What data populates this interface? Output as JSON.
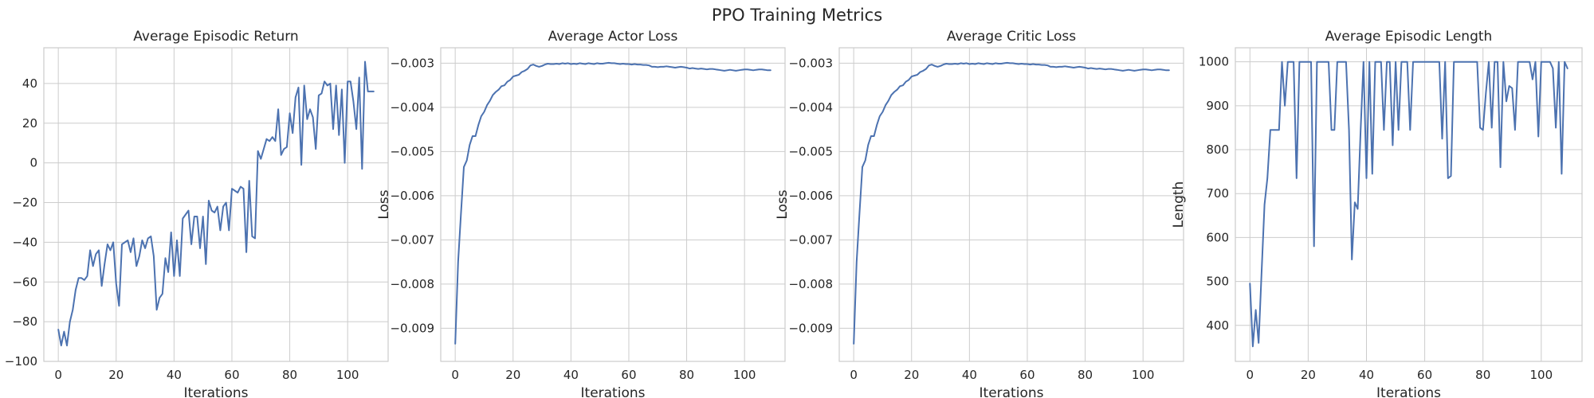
{
  "figure": {
    "title": "PPO Training Metrics",
    "line_color": "#4c72b0"
  },
  "chart_data": [
    {
      "type": "line",
      "title": "Average Episodic Return",
      "xlabel": "Iterations",
      "ylabel": "",
      "xlim": [
        -5,
        114
      ],
      "ylim": [
        -100,
        58
      ],
      "xticks": [
        0,
        20,
        40,
        60,
        80,
        100
      ],
      "yticks": [
        -100,
        -80,
        -60,
        -40,
        -20,
        0,
        20,
        40
      ],
      "series": [
        {
          "x": [
            0,
            1,
            2,
            3,
            4,
            5,
            6,
            7,
            8,
            9,
            10,
            11,
            12,
            13,
            14,
            15,
            16,
            17,
            18,
            19,
            20,
            21,
            22,
            23,
            24,
            25,
            26,
            27,
            28,
            29,
            30,
            31,
            32,
            33,
            34,
            35,
            36,
            37,
            38,
            39,
            40,
            41,
            42,
            43,
            44,
            45,
            46,
            47,
            48,
            49,
            50,
            51,
            52,
            53,
            54,
            55,
            56,
            57,
            58,
            59,
            60,
            61,
            62,
            63,
            64,
            65,
            66,
            67,
            68,
            69,
            70,
            71,
            72,
            73,
            74,
            75,
            76,
            77,
            78,
            79,
            80,
            81,
            82,
            83,
            84,
            85,
            86,
            87,
            88,
            89,
            90,
            91,
            92,
            93,
            94,
            95,
            96,
            97,
            98,
            99,
            100,
            101,
            102,
            103,
            104,
            105,
            106,
            107,
            108,
            109
          ],
          "y": [
            -84,
            -92,
            -85,
            -92,
            -80,
            -74,
            -64,
            -58,
            -58,
            -59,
            -57,
            -44,
            -52,
            -46,
            -44,
            -62,
            -51,
            -41,
            -44,
            -40,
            -61,
            -72,
            -41,
            -40,
            -39,
            -45,
            -38,
            -52,
            -47,
            -39,
            -43,
            -38,
            -37,
            -47,
            -74,
            -68,
            -66,
            -48,
            -55,
            -35,
            -57,
            -39,
            -57,
            -28,
            -26,
            -24,
            -41,
            -27,
            -27,
            -43,
            -27,
            -51,
            -19,
            -24,
            -25,
            -22,
            -34,
            -22,
            -20,
            -34,
            -13,
            -14,
            -15,
            -12,
            -13,
            -45,
            -9,
            -37,
            -38,
            6,
            2,
            7,
            12,
            11,
            13,
            11,
            27,
            4,
            7,
            8,
            25,
            15,
            33,
            38,
            -1,
            39,
            22,
            27,
            23,
            7,
            34,
            35,
            41,
            39,
            40,
            17,
            39,
            14,
            37,
            0,
            41,
            41,
            31,
            17,
            43,
            -3,
            51,
            36,
            36,
            36
          ]
        }
      ]
    },
    {
      "type": "line",
      "title": "Average Actor Loss",
      "xlabel": "Iterations",
      "ylabel": "Loss",
      "xlim": [
        -5,
        114
      ],
      "ylim": [
        -0.00975,
        -0.00265
      ],
      "xticks": [
        0,
        20,
        40,
        60,
        80,
        100
      ],
      "yticks": [
        -0.009,
        -0.008,
        -0.007,
        -0.006,
        -0.005,
        -0.004,
        -0.003
      ],
      "series": [
        {
          "x": [
            0,
            1,
            2,
            3,
            4,
            5,
            6,
            7,
            8,
            9,
            10,
            11,
            12,
            13,
            14,
            15,
            16,
            17,
            18,
            19,
            20,
            21,
            22,
            23,
            24,
            25,
            26,
            27,
            28,
            29,
            30,
            31,
            32,
            33,
            34,
            35,
            36,
            37,
            38,
            39,
            40,
            41,
            42,
            43,
            44,
            45,
            46,
            47,
            48,
            49,
            50,
            51,
            52,
            53,
            54,
            55,
            56,
            57,
            58,
            59,
            60,
            61,
            62,
            63,
            64,
            65,
            66,
            67,
            68,
            69,
            70,
            71,
            72,
            73,
            74,
            75,
            76,
            77,
            78,
            79,
            80,
            81,
            82,
            83,
            84,
            85,
            86,
            87,
            88,
            89,
            90,
            91,
            92,
            93,
            94,
            95,
            96,
            97,
            98,
            99,
            100,
            101,
            102,
            103,
            104,
            105,
            106,
            107,
            108,
            109
          ],
          "y": [
            -0.00935,
            -0.0075,
            -0.0064,
            -0.00535,
            -0.0052,
            -0.00485,
            -0.00465,
            -0.00465,
            -0.0044,
            -0.0042,
            -0.0041,
            -0.00395,
            -0.00385,
            -0.00372,
            -0.00365,
            -0.0036,
            -0.00352,
            -0.0035,
            -0.00342,
            -0.00338,
            -0.0033,
            -0.00328,
            -0.00326,
            -0.0032,
            -0.00317,
            -0.00313,
            -0.00305,
            -0.00303,
            -0.00306,
            -0.00308,
            -0.00306,
            -0.00303,
            -0.00301,
            -0.00302,
            -0.00302,
            -0.00301,
            -0.00302,
            -0.003,
            -0.00301,
            -0.003,
            -0.00302,
            -0.00301,
            -0.00302,
            -0.003,
            -0.00301,
            -0.00302,
            -0.003,
            -0.00301,
            -0.00302,
            -0.003,
            -0.00301,
            -0.00301,
            -0.003,
            -0.00299,
            -0.003,
            -0.003,
            -0.00301,
            -0.00302,
            -0.00301,
            -0.00302,
            -0.00302,
            -0.00303,
            -0.00302,
            -0.00303,
            -0.00303,
            -0.00304,
            -0.00304,
            -0.00305,
            -0.00308,
            -0.00308,
            -0.00309,
            -0.00308,
            -0.00308,
            -0.00307,
            -0.00308,
            -0.00309,
            -0.0031,
            -0.00309,
            -0.00308,
            -0.00309,
            -0.0031,
            -0.00312,
            -0.00311,
            -0.00312,
            -0.00313,
            -0.00312,
            -0.00313,
            -0.00314,
            -0.00313,
            -0.00313,
            -0.00314,
            -0.00315,
            -0.00316,
            -0.00317,
            -0.00316,
            -0.00315,
            -0.00316,
            -0.00317,
            -0.00316,
            -0.00315,
            -0.00314,
            -0.00314,
            -0.00315,
            -0.00316,
            -0.00315,
            -0.00314,
            -0.00314,
            -0.00315,
            -0.00316,
            -0.00316
          ]
        }
      ]
    },
    {
      "type": "line",
      "title": "Average Critic Loss",
      "xlabel": "Iterations",
      "ylabel": "Loss",
      "xlim": [
        -5,
        114
      ],
      "ylim": [
        -0.00975,
        -0.00265
      ],
      "xticks": [
        0,
        20,
        40,
        60,
        80,
        100
      ],
      "yticks": [
        -0.009,
        -0.008,
        -0.007,
        -0.006,
        -0.005,
        -0.004,
        -0.003
      ],
      "series": [
        {
          "x": [
            0,
            1,
            2,
            3,
            4,
            5,
            6,
            7,
            8,
            9,
            10,
            11,
            12,
            13,
            14,
            15,
            16,
            17,
            18,
            19,
            20,
            21,
            22,
            23,
            24,
            25,
            26,
            27,
            28,
            29,
            30,
            31,
            32,
            33,
            34,
            35,
            36,
            37,
            38,
            39,
            40,
            41,
            42,
            43,
            44,
            45,
            46,
            47,
            48,
            49,
            50,
            51,
            52,
            53,
            54,
            55,
            56,
            57,
            58,
            59,
            60,
            61,
            62,
            63,
            64,
            65,
            66,
            67,
            68,
            69,
            70,
            71,
            72,
            73,
            74,
            75,
            76,
            77,
            78,
            79,
            80,
            81,
            82,
            83,
            84,
            85,
            86,
            87,
            88,
            89,
            90,
            91,
            92,
            93,
            94,
            95,
            96,
            97,
            98,
            99,
            100,
            101,
            102,
            103,
            104,
            105,
            106,
            107,
            108,
            109
          ],
          "y": [
            -0.00935,
            -0.0075,
            -0.0064,
            -0.00535,
            -0.0052,
            -0.00485,
            -0.00465,
            -0.00465,
            -0.0044,
            -0.0042,
            -0.0041,
            -0.00395,
            -0.00385,
            -0.00372,
            -0.00365,
            -0.0036,
            -0.00352,
            -0.0035,
            -0.00342,
            -0.00338,
            -0.0033,
            -0.00328,
            -0.00326,
            -0.0032,
            -0.00317,
            -0.00313,
            -0.00305,
            -0.00303,
            -0.00306,
            -0.00308,
            -0.00306,
            -0.00303,
            -0.00301,
            -0.00302,
            -0.00302,
            -0.00301,
            -0.00302,
            -0.003,
            -0.00301,
            -0.003,
            -0.00302,
            -0.00301,
            -0.00302,
            -0.003,
            -0.00301,
            -0.00302,
            -0.003,
            -0.00301,
            -0.00302,
            -0.003,
            -0.00301,
            -0.00301,
            -0.003,
            -0.00299,
            -0.003,
            -0.003,
            -0.00301,
            -0.00302,
            -0.00301,
            -0.00302,
            -0.00302,
            -0.00303,
            -0.00302,
            -0.00303,
            -0.00303,
            -0.00304,
            -0.00304,
            -0.00305,
            -0.00308,
            -0.00308,
            -0.00309,
            -0.00308,
            -0.00308,
            -0.00307,
            -0.00308,
            -0.00309,
            -0.0031,
            -0.00309,
            -0.00308,
            -0.00309,
            -0.0031,
            -0.00312,
            -0.00311,
            -0.00312,
            -0.00313,
            -0.00312,
            -0.00313,
            -0.00314,
            -0.00313,
            -0.00313,
            -0.00314,
            -0.00315,
            -0.00316,
            -0.00317,
            -0.00316,
            -0.00315,
            -0.00316,
            -0.00317,
            -0.00316,
            -0.00315,
            -0.00314,
            -0.00314,
            -0.00315,
            -0.00316,
            -0.00315,
            -0.00314,
            -0.00314,
            -0.00315,
            -0.00316,
            -0.00316
          ]
        }
      ]
    },
    {
      "type": "line",
      "title": "Average Episodic Length",
      "xlabel": "Iterations",
      "ylabel": "Length",
      "xlim": [
        -5,
        114
      ],
      "ylim": [
        318,
        1032
      ],
      "xticks": [
        0,
        20,
        40,
        60,
        80,
        100
      ],
      "yticks": [
        400,
        500,
        600,
        700,
        800,
        900,
        1000
      ],
      "series": [
        {
          "x": [
            0,
            1,
            2,
            3,
            4,
            5,
            6,
            7,
            8,
            9,
            10,
            11,
            12,
            13,
            14,
            15,
            16,
            17,
            18,
            19,
            20,
            21,
            22,
            23,
            24,
            25,
            26,
            27,
            28,
            29,
            30,
            31,
            32,
            33,
            34,
            35,
            36,
            37,
            38,
            39,
            40,
            41,
            42,
            43,
            44,
            45,
            46,
            47,
            48,
            49,
            50,
            51,
            52,
            53,
            54,
            55,
            56,
            57,
            58,
            59,
            60,
            61,
            62,
            63,
            64,
            65,
            66,
            67,
            68,
            69,
            70,
            71,
            72,
            73,
            74,
            75,
            76,
            77,
            78,
            79,
            80,
            81,
            82,
            83,
            84,
            85,
            86,
            87,
            88,
            89,
            90,
            91,
            92,
            93,
            94,
            95,
            96,
            97,
            98,
            99,
            100,
            101,
            102,
            103,
            104,
            105,
            106,
            107,
            108,
            109
          ],
          "y": [
            495,
            352,
            435,
            360,
            520,
            675,
            735,
            845,
            845,
            845,
            845,
            1000,
            900,
            1000,
            1000,
            1000,
            735,
            1000,
            1000,
            1000,
            1000,
            1000,
            580,
            1000,
            1000,
            1000,
            1000,
            1000,
            845,
            845,
            1000,
            1000,
            1000,
            1000,
            845,
            550,
            680,
            665,
            845,
            1000,
            735,
            1000,
            745,
            1000,
            1000,
            1000,
            845,
            1000,
            1000,
            810,
            1000,
            845,
            1000,
            1000,
            1000,
            845,
            1000,
            1000,
            1000,
            1000,
            1000,
            1000,
            1000,
            1000,
            1000,
            1000,
            825,
            1000,
            735,
            740,
            1000,
            1000,
            1000,
            1000,
            1000,
            1000,
            1000,
            1000,
            1000,
            850,
            845,
            930,
            1000,
            850,
            1000,
            1000,
            760,
            1000,
            910,
            945,
            940,
            845,
            1000,
            1000,
            1000,
            1000,
            1000,
            960,
            1000,
            830,
            1000,
            1000,
            1000,
            1000,
            985,
            850,
            1000,
            745,
            1000,
            985
          ]
        }
      ]
    }
  ]
}
